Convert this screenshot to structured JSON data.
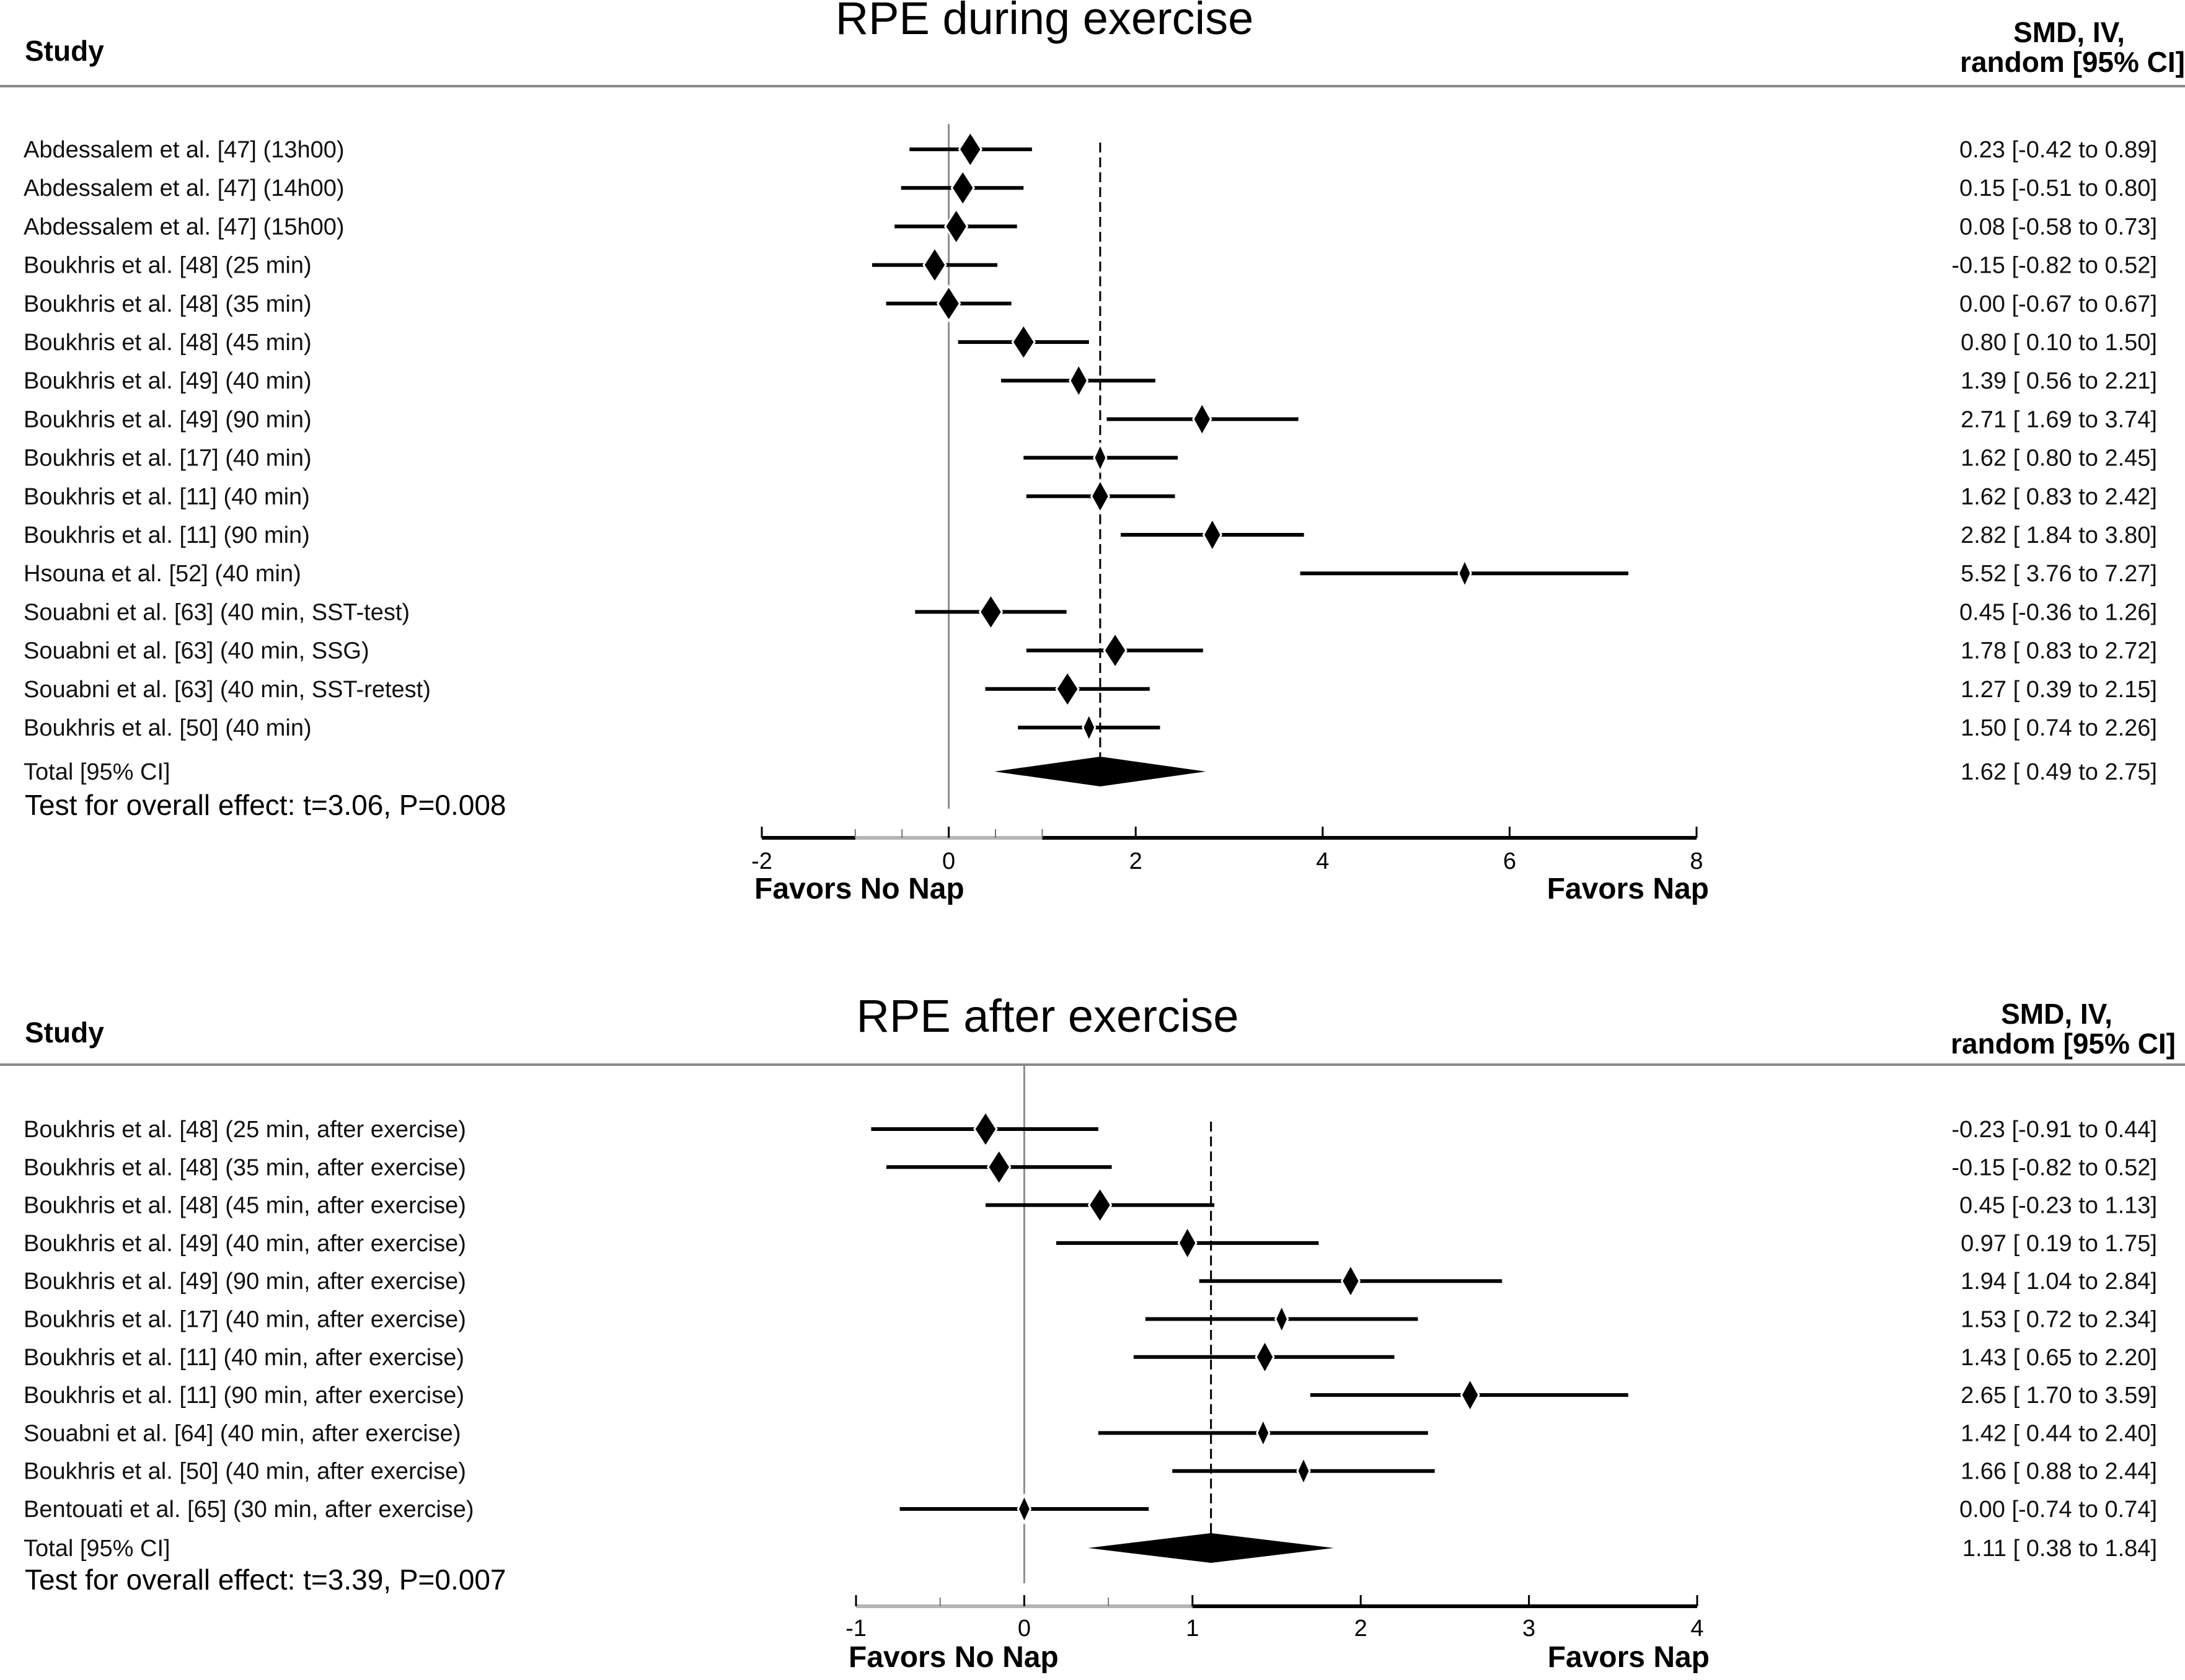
{
  "chart_data": [
    {
      "type": "forest",
      "title": "RPE during exercise",
      "study_header": "Study",
      "effect_header_line1": "SMD, IV,",
      "effect_header_line2": "random [95% CI]",
      "xlim": [
        -2,
        8
      ],
      "xticks": [
        -2,
        0,
        2,
        4,
        6,
        8
      ],
      "xtick_labels": [
        "-2",
        "0",
        "2",
        "4",
        "6",
        "8"
      ],
      "left_label": "Favors No Nap",
      "right_label": "Favors Nap",
      "studies": [
        {
          "label": "Abdessalem et al. [47] (13h00)",
          "smd": 0.23,
          "lower": -0.42,
          "upper": 0.89,
          "text": "0.23 [-0.42 to 0.89]",
          "weight": "large"
        },
        {
          "label": "Abdessalem et al. [47] (14h00)",
          "smd": 0.15,
          "lower": -0.51,
          "upper": 0.8,
          "text": "0.15 [-0.51 to 0.80]",
          "weight": "large"
        },
        {
          "label": "Abdessalem et al. [47] (15h00)",
          "smd": 0.08,
          "lower": -0.58,
          "upper": 0.73,
          "text": "0.08 [-0.58 to 0.73]",
          "weight": "large"
        },
        {
          "label": "Boukhris et al. [48] (25 min)",
          "smd": -0.15,
          "lower": -0.82,
          "upper": 0.52,
          "text": "-0.15 [-0.82 to 0.52]",
          "weight": "large"
        },
        {
          "label": "Boukhris et al. [48] (35 min)",
          "smd": 0.0,
          "lower": -0.67,
          "upper": 0.67,
          "text": "0.00 [-0.67 to 0.67]",
          "weight": "large"
        },
        {
          "label": "Boukhris et al. [48] (45 min)",
          "smd": 0.8,
          "lower": 0.1,
          "upper": 1.5,
          "text": "0.80 [ 0.10 to 1.50]",
          "weight": "large"
        },
        {
          "label": "Boukhris et al. [49] (40 min)",
          "smd": 1.39,
          "lower": 0.56,
          "upper": 2.21,
          "text": "1.39 [ 0.56 to 2.21]",
          "weight": "medium"
        },
        {
          "label": "Boukhris et al. [49] (90 min)",
          "smd": 2.71,
          "lower": 1.69,
          "upper": 3.74,
          "text": "2.71 [ 1.69 to 3.74]",
          "weight": "medium"
        },
        {
          "label": "Boukhris et al. [17] (40 min)",
          "smd": 1.62,
          "lower": 0.8,
          "upper": 2.45,
          "text": "1.62 [ 0.80 to 2.45]",
          "weight": "small"
        },
        {
          "label": "Boukhris et al. [11] (40 min)",
          "smd": 1.62,
          "lower": 0.83,
          "upper": 2.42,
          "text": "1.62 [ 0.83 to 2.42]",
          "weight": "medium"
        },
        {
          "label": "Boukhris et al. [11] (90 min)",
          "smd": 2.82,
          "lower": 1.84,
          "upper": 3.8,
          "text": "2.82 [ 1.84 to 3.80]",
          "weight": "medium"
        },
        {
          "label": "Hsouna et al. [52] (40 min)",
          "smd": 5.52,
          "lower": 3.76,
          "upper": 7.27,
          "text": "5.52 [ 3.76 to 7.27]",
          "weight": "small"
        },
        {
          "label": "Souabni et al. [63] (40 min, SST-test)",
          "smd": 0.45,
          "lower": -0.36,
          "upper": 1.26,
          "text": "0.45 [-0.36 to 1.26]",
          "weight": "large"
        },
        {
          "label": "Souabni et al. [63] (40 min, SSG)",
          "smd": 1.78,
          "lower": 0.83,
          "upper": 2.72,
          "text": "1.78 [ 0.83 to 2.72]",
          "weight": "large"
        },
        {
          "label": "Souabni et al. [63] (40 min, SST-retest)",
          "smd": 1.27,
          "lower": 0.39,
          "upper": 2.15,
          "text": "1.27 [ 0.39 to 2.15]",
          "weight": "large"
        },
        {
          "label": "Boukhris et al. [50] (40 min)",
          "smd": 1.5,
          "lower": 0.74,
          "upper": 2.26,
          "text": "1.50 [ 0.74 to 2.26]",
          "weight": "small"
        }
      ],
      "total": {
        "label": "Total [95% CI]",
        "smd": 1.62,
        "lower": 0.49,
        "upper": 2.75,
        "text": "1.62 [ 0.49 to 2.75]"
      },
      "test_overall": "Test for overall effect: t=3.06, P=0.008"
    },
    {
      "type": "forest",
      "title": "RPE after exercise",
      "study_header": "Study",
      "effect_header_line1": "SMD, IV,",
      "effect_header_line2": "random [95% CI]",
      "xlim": [
        -1,
        4
      ],
      "xticks": [
        -1,
        0,
        1,
        2,
        3,
        4
      ],
      "xtick_labels": [
        "-1",
        "0",
        "1",
        "2",
        "3",
        "4"
      ],
      "left_label": "Favors No Nap",
      "right_label": "Favors Nap",
      "studies": [
        {
          "label": "Boukhris et al. [48] (25 min, after exercise)",
          "smd": -0.23,
          "lower": -0.91,
          "upper": 0.44,
          "text": "-0.23 [-0.91 to 0.44]",
          "weight": "large"
        },
        {
          "label": "Boukhris et al. [48] (35 min, after exercise)",
          "smd": -0.15,
          "lower": -0.82,
          "upper": 0.52,
          "text": "-0.15 [-0.82 to 0.52]",
          "weight": "large"
        },
        {
          "label": "Boukhris et al. [48] (45 min, after exercise)",
          "smd": 0.45,
          "lower": -0.23,
          "upper": 1.13,
          "text": "0.45 [-0.23 to 1.13]",
          "weight": "large"
        },
        {
          "label": "Boukhris et al. [49] (40 min, after exercise)",
          "smd": 0.97,
          "lower": 0.19,
          "upper": 1.75,
          "text": "0.97 [ 0.19 to 1.75]",
          "weight": "medium"
        },
        {
          "label": "Boukhris et al. [49] (90 min, after exercise)",
          "smd": 1.94,
          "lower": 1.04,
          "upper": 2.84,
          "text": "1.94 [ 1.04 to 2.84]",
          "weight": "medium"
        },
        {
          "label": "Boukhris et al. [17] (40 min, after exercise)",
          "smd": 1.53,
          "lower": 0.72,
          "upper": 2.34,
          "text": "1.53 [ 0.72 to 2.34]",
          "weight": "small"
        },
        {
          "label": "Boukhris et al. [11] (40 min, after exercise)",
          "smd": 1.43,
          "lower": 0.65,
          "upper": 2.2,
          "text": "1.43 [ 0.65 to 2.20]",
          "weight": "medium"
        },
        {
          "label": "Boukhris et al. [11] (90 min, after exercise)",
          "smd": 2.65,
          "lower": 1.7,
          "upper": 3.59,
          "text": "2.65 [ 1.70 to 3.59]",
          "weight": "medium"
        },
        {
          "label": "Souabni et al. [64] (40 min, after exercise)",
          "smd": 1.42,
          "lower": 0.44,
          "upper": 2.4,
          "text": "1.42 [ 0.44 to 2.40]",
          "weight": "small"
        },
        {
          "label": "Boukhris et al. [50] (40 min, after exercise)",
          "smd": 1.66,
          "lower": 0.88,
          "upper": 2.44,
          "text": "1.66 [ 0.88 to 2.44]",
          "weight": "small"
        },
        {
          "label": "Bentouati et al. [65] (30 min, after exercise)",
          "smd": 0.0,
          "lower": -0.74,
          "upper": 0.74,
          "text": "0.00 [-0.74 to 0.74]",
          "weight": "small"
        }
      ],
      "total": {
        "label": "Total [95% CI]",
        "smd": 1.11,
        "lower": 0.38,
        "upper": 1.84,
        "text": "1.11 [ 0.38 to 1.84]"
      },
      "test_overall": "Test for overall effect: t=3.39, P=0.007"
    }
  ]
}
